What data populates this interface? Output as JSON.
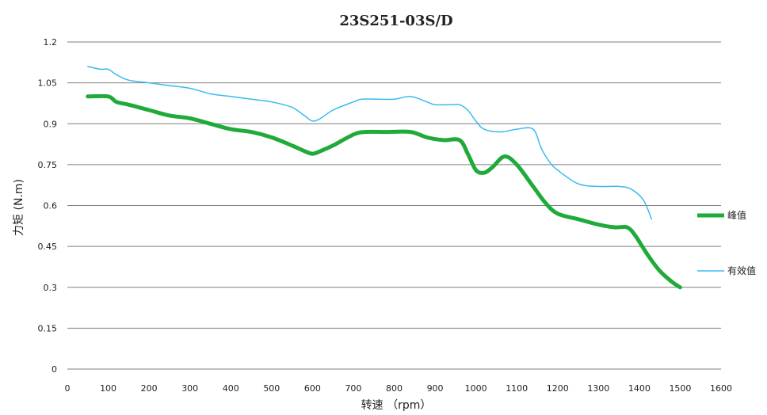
{
  "chart_data": {
    "type": "line",
    "title": "23S251-03S/D",
    "xlabel": "转速 （rpm）",
    "ylabel": "力矩 (N.m)",
    "xlim": [
      0,
      1600
    ],
    "ylim": [
      0,
      1.2
    ],
    "x_ticks": [
      "0",
      "100",
      "200",
      "300",
      "400",
      "500",
      "600",
      "700",
      "800",
      "900",
      "1000",
      "1100",
      "1200",
      "1300",
      "1400",
      "1500",
      "1600"
    ],
    "y_ticks": [
      "0",
      "0.15",
      "0.3",
      "0.45",
      "0.6",
      "0.75",
      "0.9",
      "1.05",
      "1.2"
    ],
    "grid": "horizontal",
    "legend_position": "right",
    "series": [
      {
        "name": "峰值",
        "color": "#1faa3a",
        "x": [
          50,
          100,
          120,
          150,
          200,
          250,
          300,
          350,
          400,
          450,
          500,
          550,
          580,
          600,
          620,
          650,
          700,
          730,
          780,
          840,
          880,
          920,
          960,
          980,
          1000,
          1020,
          1040,
          1070,
          1100,
          1140,
          1170,
          1200,
          1250,
          1300,
          1340,
          1370,
          1390,
          1420,
          1450,
          1480,
          1500
        ],
        "values": [
          1.0,
          1.0,
          0.98,
          0.97,
          0.95,
          0.93,
          0.92,
          0.9,
          0.88,
          0.87,
          0.85,
          0.82,
          0.8,
          0.79,
          0.8,
          0.82,
          0.86,
          0.87,
          0.87,
          0.87,
          0.85,
          0.84,
          0.84,
          0.79,
          0.73,
          0.72,
          0.74,
          0.78,
          0.75,
          0.67,
          0.61,
          0.57,
          0.55,
          0.53,
          0.52,
          0.52,
          0.49,
          0.42,
          0.36,
          0.32,
          0.3
        ]
      },
      {
        "name": "有效值",
        "color": "#3cb9f0",
        "x": [
          50,
          80,
          100,
          120,
          150,
          200,
          250,
          300,
          350,
          400,
          450,
          500,
          550,
          580,
          600,
          620,
          650,
          700,
          720,
          760,
          800,
          840,
          880,
          900,
          940,
          960,
          980,
          1000,
          1020,
          1060,
          1100,
          1140,
          1160,
          1180,
          1200,
          1250,
          1300,
          1350,
          1380,
          1410,
          1430
        ],
        "values": [
          1.11,
          1.1,
          1.1,
          1.08,
          1.06,
          1.05,
          1.04,
          1.03,
          1.01,
          1.0,
          0.99,
          0.98,
          0.96,
          0.93,
          0.91,
          0.92,
          0.95,
          0.98,
          0.99,
          0.99,
          0.99,
          1.0,
          0.98,
          0.97,
          0.97,
          0.97,
          0.95,
          0.91,
          0.88,
          0.87,
          0.88,
          0.88,
          0.81,
          0.76,
          0.73,
          0.68,
          0.67,
          0.67,
          0.66,
          0.62,
          0.55
        ]
      }
    ]
  }
}
